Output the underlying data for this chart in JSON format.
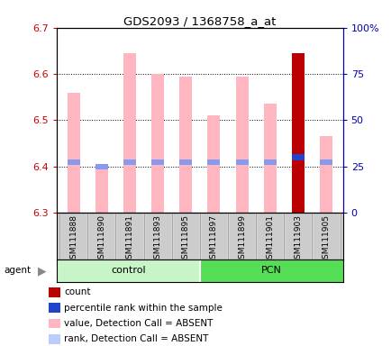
{
  "title": "GDS2093 / 1368758_a_at",
  "samples": [
    "GSM111888",
    "GSM111890",
    "GSM111891",
    "GSM111893",
    "GSM111895",
    "GSM111897",
    "GSM111899",
    "GSM111901",
    "GSM111903",
    "GSM111905"
  ],
  "values": [
    6.56,
    6.4,
    6.645,
    6.6,
    6.595,
    6.51,
    6.595,
    6.535,
    6.645,
    6.465
  ],
  "ranks": [
    6.41,
    6.4,
    6.41,
    6.41,
    6.41,
    6.41,
    6.41,
    6.41,
    6.42,
    6.41
  ],
  "ylim_left": [
    6.3,
    6.7
  ],
  "ylim_right": [
    0,
    100
  ],
  "yticks_left": [
    6.3,
    6.4,
    6.5,
    6.6,
    6.7
  ],
  "yticks_right": [
    0,
    25,
    50,
    75,
    100
  ],
  "ytick_labels_right": [
    "0",
    "25",
    "50",
    "75",
    "100%"
  ],
  "bar_color_pink": "#FFB6C1",
  "bar_color_red": "#BB0000",
  "rank_color_blue": "#8899EE",
  "rank_color_darkblue": "#2244CC",
  "special_sample_idx": 8,
  "bar_width": 0.45,
  "background_color": "#ffffff",
  "ylabel_left_color": "#CC0000",
  "ylabel_right_color": "#0000BB",
  "control_color_light": "#C8F5C8",
  "pcn_color": "#55DD55",
  "sample_bg_color": "#CCCCCC",
  "legend_items": [
    {
      "color": "#BB0000",
      "label": "count"
    },
    {
      "color": "#2244CC",
      "label": "percentile rank within the sample"
    },
    {
      "color": "#FFB6C1",
      "label": "value, Detection Call = ABSENT"
    },
    {
      "color": "#BBCCFF",
      "label": "rank, Detection Call = ABSENT"
    }
  ]
}
